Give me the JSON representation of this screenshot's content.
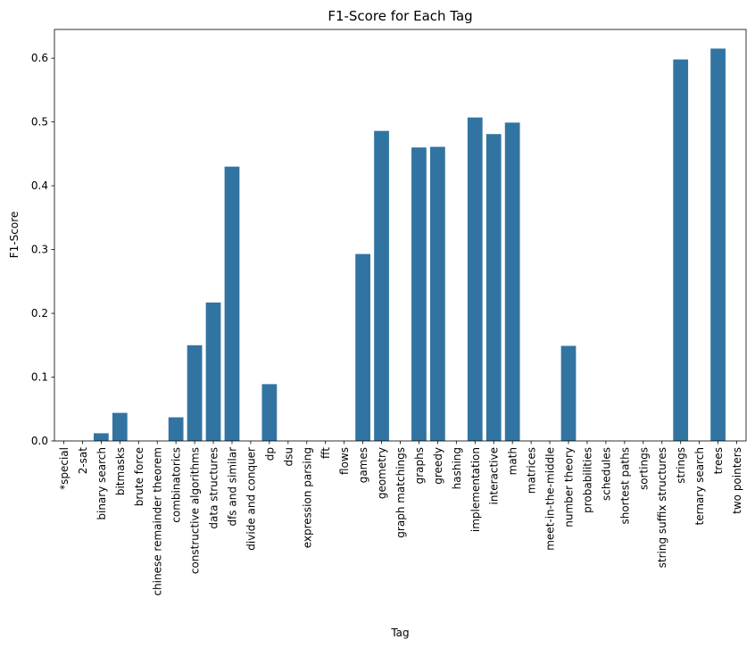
{
  "chart_data": {
    "type": "bar",
    "title": "F1-Score for Each Tag",
    "xlabel": "Tag",
    "ylabel": "F1-Score",
    "ylim": [
      0,
      0.645
    ],
    "yticks": [
      0.0,
      0.1,
      0.2,
      0.3,
      0.4,
      0.5,
      0.6
    ],
    "ytick_labels": [
      "0.0",
      "0.1",
      "0.2",
      "0.3",
      "0.4",
      "0.5",
      "0.6"
    ],
    "bar_color": "#3274a1",
    "grid": false,
    "categories": [
      "*special",
      "2-sat",
      "binary search",
      "bitmasks",
      "brute force",
      "chinese remainder theorem",
      "combinatorics",
      "constructive algorithms",
      "data structures",
      "dfs and similar",
      "divide and conquer",
      "dp",
      "dsu",
      "expression parsing",
      "fft",
      "flows",
      "games",
      "geometry",
      "graph matchings",
      "graphs",
      "greedy",
      "hashing",
      "implementation",
      "interactive",
      "math",
      "matrices",
      "meet-in-the-middle",
      "number theory",
      "probabilities",
      "schedules",
      "shortest paths",
      "sortings",
      "string suffix structures",
      "strings",
      "ternary search",
      "trees",
      "two pointers"
    ],
    "values": [
      0,
      0,
      0.012,
      0.044,
      0,
      0,
      0.037,
      0.15,
      0.217,
      0.43,
      0,
      0.089,
      0,
      0,
      0,
      0,
      0.293,
      0.486,
      0,
      0.46,
      0.461,
      0,
      0.507,
      0.481,
      0.499,
      0,
      0,
      0.149,
      0,
      0,
      0,
      0,
      0,
      0.598,
      0,
      0.615,
      0
    ]
  }
}
